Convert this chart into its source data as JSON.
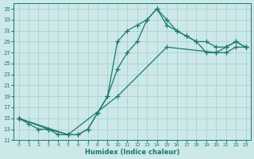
{
  "xlabel": "Humidex (Indice chaleur)",
  "bg_color": "#cce8e8",
  "line_color": "#1a7870",
  "grid_color": "#a8cccc",
  "xlim": [
    -0.5,
    23.5
  ],
  "ylim": [
    11,
    36
  ],
  "xticks": [
    0,
    1,
    2,
    3,
    4,
    5,
    6,
    7,
    8,
    9,
    10,
    11,
    12,
    13,
    14,
    15,
    16,
    17,
    18,
    19,
    20,
    21,
    22,
    23
  ],
  "yticks": [
    11,
    13,
    15,
    17,
    19,
    21,
    23,
    25,
    27,
    29,
    31,
    33,
    35
  ],
  "line1_x": [
    0,
    1,
    2,
    3,
    4,
    5,
    6,
    7,
    8,
    9,
    10,
    11,
    12,
    13,
    14,
    15,
    16,
    17,
    18,
    19,
    20,
    21,
    22,
    23
  ],
  "line1_y": [
    15,
    14,
    13,
    13,
    12,
    12,
    12,
    13,
    16,
    19,
    29,
    31,
    32,
    33,
    35,
    32,
    31,
    30,
    29,
    29,
    28,
    28,
    29,
    28
  ],
  "line2_x": [
    0,
    3,
    5,
    6,
    7,
    8,
    9,
    10,
    11,
    12,
    13,
    14,
    15,
    16,
    17,
    18,
    19,
    20,
    21,
    22,
    23
  ],
  "line2_y": [
    15,
    13,
    12,
    12,
    13,
    16,
    19,
    24,
    27,
    29,
    33,
    35,
    33,
    31,
    30,
    29,
    27,
    27,
    28,
    29,
    28
  ],
  "line3_x": [
    0,
    5,
    10,
    15,
    20,
    21,
    22,
    23
  ],
  "line3_y": [
    15,
    12,
    19,
    28,
    27,
    27,
    28,
    28
  ]
}
